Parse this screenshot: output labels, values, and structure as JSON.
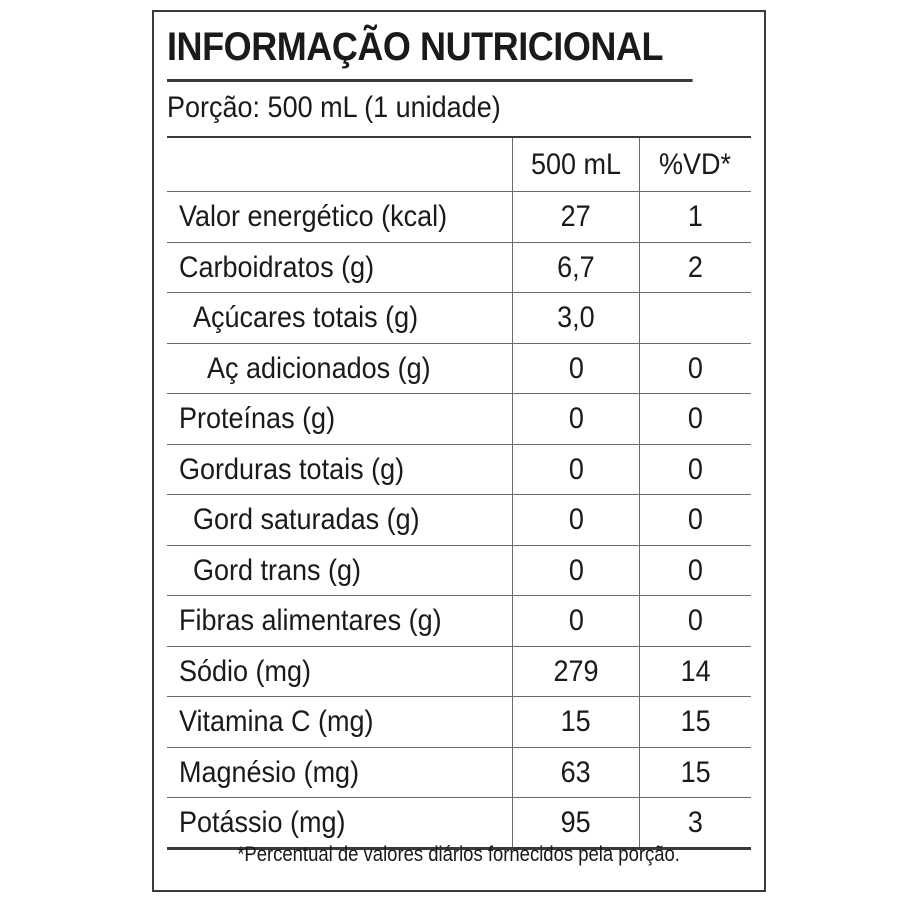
{
  "label": {
    "title": "INFORMAÇÃO NUTRICIONAL",
    "portion": "Porção: 500 mL (1 unidade)",
    "header": {
      "name": "",
      "amount": "500 mL",
      "dv": "%VD*"
    },
    "rows": [
      {
        "name": "Valor energético (kcal)",
        "amount": "27",
        "dv": "1",
        "level": 0
      },
      {
        "name": "Carboidratos (g)",
        "amount": "6,7",
        "dv": "2",
        "level": 0
      },
      {
        "name": "Açúcares totais (g)",
        "amount": "3,0",
        "dv": "",
        "level": 1
      },
      {
        "name": "Aç adicionados (g)",
        "amount": "0",
        "dv": "0",
        "level": 2
      },
      {
        "name": "Proteínas (g)",
        "amount": "0",
        "dv": "0",
        "level": 0
      },
      {
        "name": "Gorduras totais (g)",
        "amount": "0",
        "dv": "0",
        "level": 0
      },
      {
        "name": "Gord saturadas (g)",
        "amount": "0",
        "dv": "0",
        "level": 1
      },
      {
        "name": "Gord trans (g)",
        "amount": "0",
        "dv": "0",
        "level": 1
      },
      {
        "name": "Fibras alimentares (g)",
        "amount": "0",
        "dv": "0",
        "level": 0
      },
      {
        "name": "Sódio (mg)",
        "amount": "279",
        "dv": "14",
        "level": 0
      },
      {
        "name": "Vitamina C (mg)",
        "amount": "15",
        "dv": "15",
        "level": 0
      },
      {
        "name": "Magnésio (mg)",
        "amount": "63",
        "dv": "15",
        "level": 0
      },
      {
        "name": "Potássio (mg)",
        "amount": "95",
        "dv": "3",
        "level": 0
      }
    ],
    "footnote": "*Percentual de valores diários fornecidos pela porção."
  }
}
